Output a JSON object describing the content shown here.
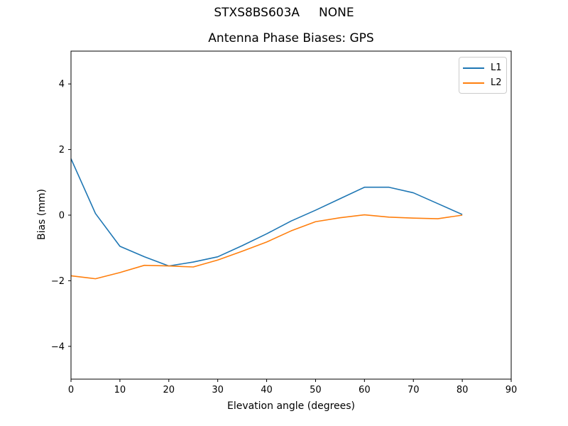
{
  "figure": {
    "suptitle": "STXS8BS603A     NONE",
    "background": "#ffffff"
  },
  "chart_data": {
    "type": "line",
    "title": "Antenna Phase Biases: GPS",
    "xlabel": "Elevation angle (degrees)",
    "ylabel": "Bias (mm)",
    "xlim": [
      0,
      90
    ],
    "ylim": [
      -5,
      5
    ],
    "xticks": [
      0,
      10,
      20,
      30,
      40,
      50,
      60,
      70,
      80,
      90
    ],
    "yticks": [
      -4,
      -2,
      0,
      2,
      4
    ],
    "grid": false,
    "legend": {
      "position": "upper right",
      "entries": [
        "L1",
        "L2"
      ]
    },
    "x": [
      0,
      5,
      10,
      15,
      20,
      25,
      30,
      35,
      40,
      45,
      50,
      55,
      60,
      65,
      70,
      75,
      80
    ],
    "series": [
      {
        "name": "L1",
        "color": "#1f77b4",
        "values": [
          1.72,
          0.05,
          -0.95,
          -1.27,
          -1.55,
          -1.43,
          -1.27,
          -0.93,
          -0.57,
          -0.18,
          0.15,
          0.5,
          0.85,
          0.85,
          0.68,
          0.35,
          0.02
        ]
      },
      {
        "name": "L2",
        "color": "#ff7f0e",
        "values": [
          -1.85,
          -1.94,
          -1.75,
          -1.53,
          -1.55,
          -1.58,
          -1.37,
          -1.1,
          -0.82,
          -0.48,
          -0.2,
          -0.08,
          0.01,
          -0.06,
          -0.09,
          -0.11,
          0.0
        ]
      }
    ],
    "axes_color": "#000000"
  }
}
